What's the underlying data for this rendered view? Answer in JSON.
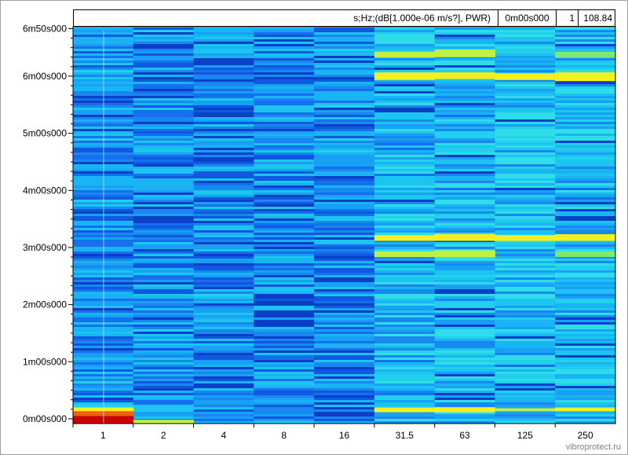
{
  "header": {
    "unit_label": "s;Hz;(dB[1.000e-06 m/s?], PWR)",
    "cursor_time": "0m00s000",
    "cursor_index": "1",
    "cursor_value": "108.84"
  },
  "watermark": "vibroprotect.ru",
  "colors": {
    "background_low": "#1060e0",
    "background_mid": "#18b0f0",
    "hot_yellow": "#f0f020",
    "hot_red": "#d00000"
  },
  "chart_data": {
    "type": "heatmap",
    "title": "",
    "xlabel": "",
    "ylabel": "",
    "x_categories": [
      "1",
      "2",
      "4",
      "8",
      "16",
      "31.5",
      "63",
      "125",
      "250"
    ],
    "y_ticks": [
      {
        "value": 0,
        "label": "0m00s000"
      },
      {
        "value": 60,
        "label": "1m00s000"
      },
      {
        "value": 120,
        "label": "2m00s000"
      },
      {
        "value": 180,
        "label": "3m00s000"
      },
      {
        "value": 240,
        "label": "4m00s000"
      },
      {
        "value": 300,
        "label": "5m00s000"
      },
      {
        "value": 360,
        "label": "6m00s000"
      },
      {
        "value": 410,
        "label": "6m50s000"
      }
    ],
    "ylim": [
      -5,
      412
    ],
    "hot_bands": [
      {
        "band": "1",
        "y_from": -5,
        "y_to": 3,
        "level": "red"
      },
      {
        "band": "1",
        "y_from": 3,
        "y_to": 8,
        "level": "orange"
      },
      {
        "band": "1",
        "y_from": 8,
        "y_to": 12,
        "level": "yellow"
      },
      {
        "band": "2",
        "y_from": -5,
        "y_to": -1,
        "level": "yellow-green"
      },
      {
        "band": "31.5",
        "y_from": 7,
        "y_to": 12,
        "level": "yellow"
      },
      {
        "band": "63",
        "y_from": 7,
        "y_to": 12,
        "level": "yellow"
      },
      {
        "band": "125",
        "y_from": 8,
        "y_to": 11,
        "level": "yellow-green"
      },
      {
        "band": "250",
        "y_from": 8,
        "y_to": 12,
        "level": "yellow"
      },
      {
        "band": "31.5",
        "y_from": 187,
        "y_to": 193,
        "level": "yellow"
      },
      {
        "band": "63",
        "y_from": 187,
        "y_to": 194,
        "level": "yellow"
      },
      {
        "band": "125",
        "y_from": 187,
        "y_to": 193,
        "level": "yellow"
      },
      {
        "band": "250",
        "y_from": 187,
        "y_to": 194,
        "level": "yellow"
      },
      {
        "band": "31.5",
        "y_from": 170,
        "y_to": 176,
        "level": "yellow-green"
      },
      {
        "band": "63",
        "y_from": 170,
        "y_to": 177,
        "level": "yellow-green"
      },
      {
        "band": "250",
        "y_from": 170,
        "y_to": 176,
        "level": "green"
      },
      {
        "band": "31.5",
        "y_from": 356,
        "y_to": 364,
        "level": "yellow"
      },
      {
        "band": "63",
        "y_from": 357,
        "y_to": 364,
        "level": "yellow"
      },
      {
        "band": "125",
        "y_from": 356,
        "y_to": 363,
        "level": "yellow"
      },
      {
        "band": "250",
        "y_from": 355,
        "y_to": 364,
        "level": "yellow"
      },
      {
        "band": "31.5",
        "y_from": 380,
        "y_to": 386,
        "level": "yellow-green"
      },
      {
        "band": "63",
        "y_from": 380,
        "y_to": 388,
        "level": "yellow-green"
      },
      {
        "band": "250",
        "y_from": 380,
        "y_to": 386,
        "level": "green"
      }
    ]
  }
}
